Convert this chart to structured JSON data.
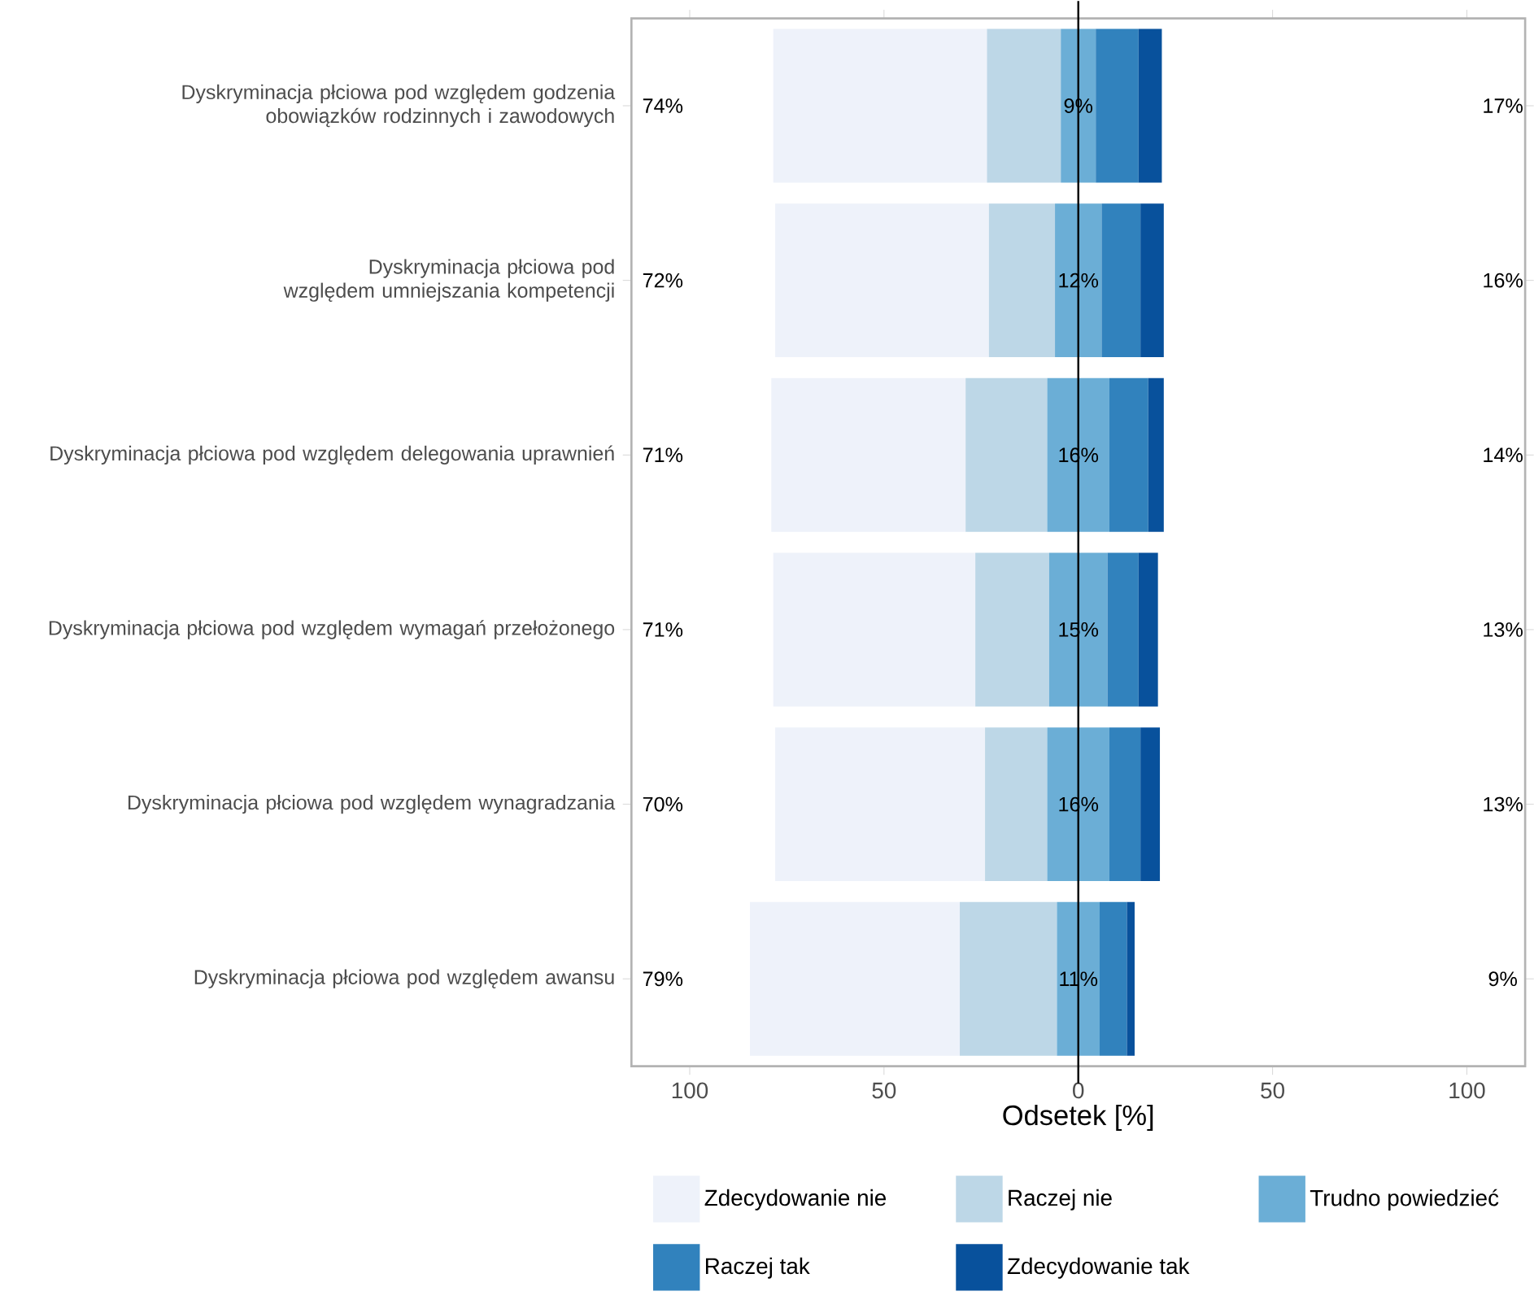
{
  "chart_data": {
    "type": "bar",
    "orientation": "horizontal",
    "categories": [
      "Dyskryminacja płciowa pod względem godzenia obowiązków rodzinnych i zawodowych",
      "Dyskryminacja płciowa pod względem umniejszania kompetencji",
      "Dyskryminacja płciowa pod względem delegowania uprawnień",
      "Dyskryminacja płciowa pod względem wymagań przełożonego",
      "Dyskryminacja płciowa pod względem wynagradzania",
      "Dyskryminacja płciowa pod względem awansu"
    ],
    "series": [
      {
        "name": "Zdecydowanie nie",
        "color": "#eef2fa",
        "base": [
          -78.5,
          -78,
          -79,
          -78.5,
          -78,
          -84.5
        ],
        "values": [
          55,
          55,
          50,
          52,
          54,
          54
        ]
      },
      {
        "name": "Raczej nie",
        "color": "#bdd7e7",
        "base": [
          -23.5,
          -23,
          -29,
          -26.5,
          -24,
          -30.5
        ],
        "values": [
          19,
          17,
          21,
          19,
          16,
          25
        ]
      },
      {
        "name": "Trudno powiedzieć",
        "color": "#6baed6",
        "base": [
          -4.5,
          -6,
          -8,
          -7.5,
          -8,
          -5.5
        ],
        "values": [
          9,
          12,
          16,
          15,
          16,
          11
        ],
        "value_labels": [
          "9%",
          "12%",
          "16%",
          "15%",
          "16%",
          "11%"
        ]
      },
      {
        "name": "Raczej tak",
        "color": "#3182bd",
        "base": [
          4.5,
          6,
          8,
          7.5,
          8,
          5.5
        ],
        "values": [
          11,
          10,
          10,
          8,
          8,
          7
        ]
      },
      {
        "name": "Zdecydowanie tak",
        "color": "#08519c",
        "base": [
          15.5,
          16,
          18,
          15.5,
          16,
          12.5
        ],
        "values": [
          6,
          6,
          4,
          5,
          5,
          2
        ]
      }
    ],
    "xlabel": "Odsetek [%]",
    "xlim": [
      -115,
      115
    ],
    "xticks": [
      {
        "value": -100,
        "label": "100"
      },
      {
        "value": -50,
        "label": "50"
      },
      0,
      50,
      100
    ],
    "ref_lines": [
      {
        "axis": "x",
        "value": 0,
        "color": "#000000"
      }
    ],
    "annotations": [
      "74%",
      "72%",
      "71%",
      "71%",
      "70%",
      "79%",
      "17%",
      "16%",
      "14%",
      "13%",
      "13%",
      "9%"
    ],
    "grid": false,
    "legend": "bottom"
  }
}
